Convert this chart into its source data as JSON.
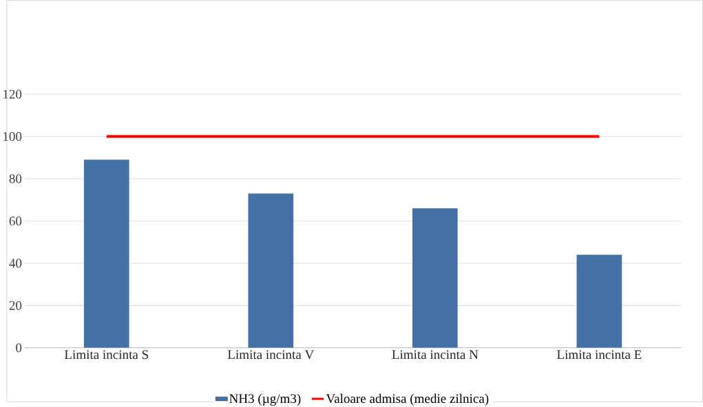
{
  "chart_data": {
    "type": "bar",
    "categories": [
      "Limita incinta S",
      "Limita incinta V",
      "Limita incinta N",
      "Limita incinta E"
    ],
    "series": [
      {
        "name": "NH3 (µg/m3)",
        "color": "#4472a4",
        "values": [
          89,
          73,
          66,
          44
        ]
      },
      {
        "name": "Valoare admisa (medie zilnica)",
        "type": "line",
        "color": "#ff0000",
        "values": [
          100,
          100,
          100,
          100
        ]
      }
    ],
    "ylim": [
      0,
      120
    ],
    "yticks": [
      0,
      20,
      40,
      60,
      80,
      100,
      120
    ],
    "grid": "y",
    "legend": "bottom"
  }
}
